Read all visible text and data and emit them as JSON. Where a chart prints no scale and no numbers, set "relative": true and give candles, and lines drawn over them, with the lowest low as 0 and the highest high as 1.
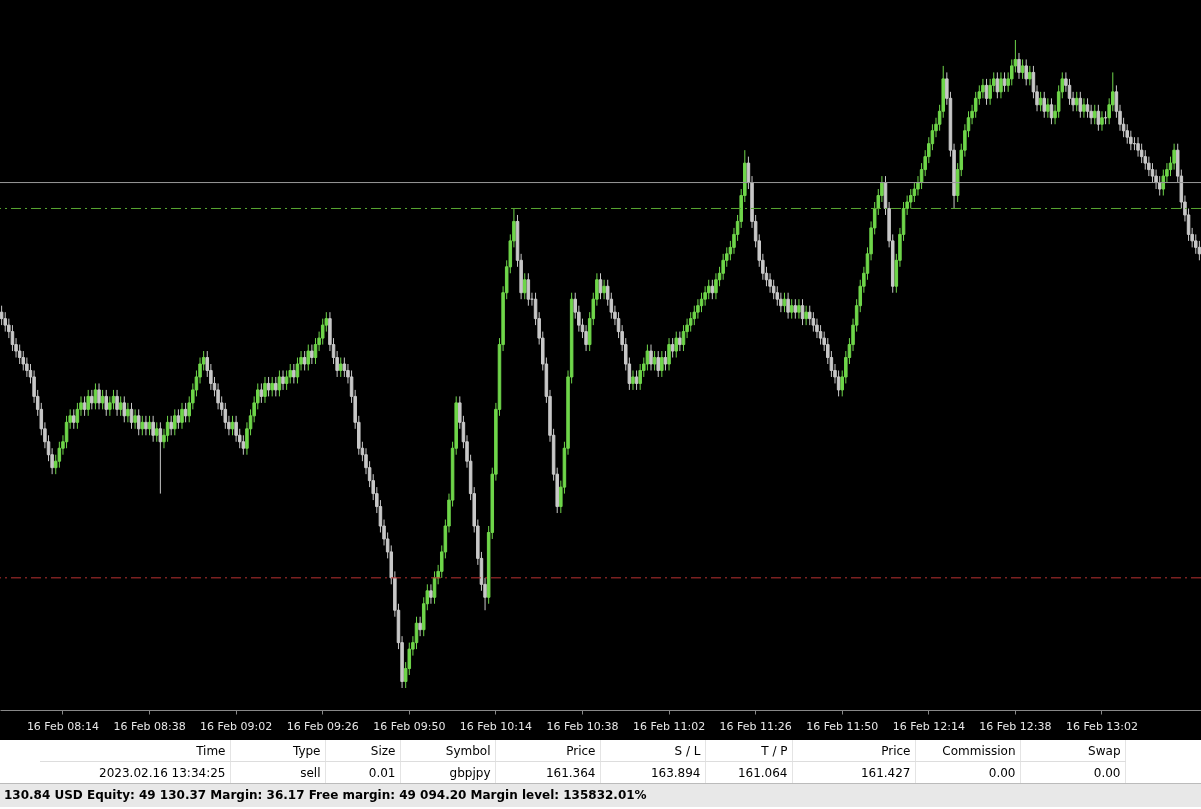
{
  "chart_data": {
    "type": "candlestick",
    "relative": true,
    "categories": [
      null,
      null,
      null,
      null,
      null,
      null,
      null,
      null,
      null,
      null,
      null,
      null,
      null,
      null,
      null,
      null,
      null,
      "16 Feb 08:14",
      null,
      null,
      null,
      null,
      null,
      null,
      null,
      null,
      null,
      null,
      null,
      null,
      null,
      null,
      null,
      null,
      null,
      null,
      null,
      null,
      null,
      null,
      null,
      "16 Feb 08:38",
      null,
      null,
      null,
      null,
      null,
      null,
      null,
      null,
      null,
      null,
      null,
      null,
      null,
      null,
      null,
      null,
      null,
      null,
      null,
      null,
      null,
      null,
      null,
      "16 Feb 09:02",
      null,
      null,
      null,
      null,
      null,
      null,
      null,
      null,
      null,
      null,
      null,
      null,
      null,
      null,
      null,
      null,
      null,
      null,
      null,
      null,
      null,
      null,
      null,
      "16 Feb 09:26",
      null,
      null,
      null,
      null,
      null,
      null,
      null,
      null,
      null,
      null,
      null,
      null,
      null,
      null,
      null,
      null,
      null,
      null,
      null,
      null,
      null,
      null,
      null,
      "16 Feb 09:50",
      null,
      null,
      null,
      null,
      null,
      null,
      null,
      null,
      null,
      null,
      null,
      null,
      null,
      null,
      null,
      null,
      null,
      null,
      null,
      null,
      null,
      null,
      null,
      "16 Feb 10:14",
      null,
      null,
      null,
      null,
      null,
      null,
      null,
      null,
      null,
      null,
      null,
      null,
      null,
      null,
      null,
      null,
      null,
      null,
      null,
      null,
      null,
      null,
      null,
      "16 Feb 10:38",
      null,
      null,
      null,
      null,
      null,
      null,
      null,
      null,
      null,
      null,
      null,
      null,
      null,
      null,
      null,
      null,
      null,
      null,
      null,
      null,
      null,
      null,
      null,
      "16 Feb 11:02",
      null,
      null,
      null,
      null,
      null,
      null,
      null,
      null,
      null,
      null,
      null,
      null,
      null,
      null,
      null,
      null,
      null,
      null,
      null,
      null,
      null,
      null,
      null,
      "16 Feb 11:26",
      null,
      null,
      null,
      null,
      null,
      null,
      null,
      null,
      null,
      null,
      null,
      null,
      null,
      null,
      null,
      null,
      null,
      null,
      null,
      null,
      null,
      null,
      null,
      "16 Feb 11:50",
      null,
      null,
      null,
      null,
      null,
      null,
      null,
      null,
      null,
      null,
      null,
      null,
      null,
      null,
      null,
      null,
      null,
      null,
      null,
      null,
      null,
      null,
      null,
      "16 Feb 12:14",
      null,
      null,
      null,
      null,
      null,
      null,
      null,
      null,
      null,
      null,
      null,
      null,
      null,
      null,
      null,
      null,
      null,
      null,
      null,
      null,
      null,
      null,
      null,
      "16 Feb 12:38",
      null,
      null,
      null,
      null,
      null,
      null,
      null,
      null,
      null,
      null,
      null,
      null,
      null,
      null,
      null,
      null,
      null,
      null,
      null,
      null,
      null,
      null,
      null,
      "16 Feb 13:02",
      null,
      null,
      null,
      null,
      null,
      null,
      null,
      null,
      null,
      null,
      null,
      null,
      null,
      null,
      null,
      null,
      null,
      null,
      null,
      null,
      null,
      null,
      null,
      null,
      null,
      null,
      null
    ],
    "ohlc": [
      [
        0.58,
        0.59,
        0.56,
        0.57
      ],
      [
        0.57,
        0.58,
        0.55,
        0.56
      ],
      [
        0.56,
        0.57,
        0.54,
        0.55
      ],
      [
        0.55,
        0.56,
        0.52,
        0.53
      ],
      [
        0.53,
        0.54,
        0.51,
        0.52
      ],
      [
        0.52,
        0.53,
        0.5,
        0.51
      ],
      [
        0.51,
        0.52,
        0.49,
        0.5
      ],
      [
        0.5,
        0.51,
        0.48,
        0.49
      ],
      [
        0.49,
        0.5,
        0.47,
        0.48
      ],
      [
        0.48,
        0.49,
        0.44,
        0.45
      ],
      [
        0.45,
        0.46,
        0.42,
        0.43
      ],
      [
        0.43,
        0.44,
        0.39,
        0.4
      ],
      [
        0.4,
        0.41,
        0.37,
        0.38
      ],
      [
        0.38,
        0.39,
        0.35,
        0.36
      ],
      [
        0.36,
        0.37,
        0.33,
        0.34
      ],
      [
        0.34,
        0.36,
        0.33,
        0.35
      ],
      [
        0.35,
        0.38,
        0.34,
        0.37
      ],
      [
        0.37,
        0.39,
        0.36,
        0.38
      ],
      [
        0.38,
        0.42,
        0.37,
        0.41
      ],
      [
        0.41,
        0.43,
        0.4,
        0.42
      ],
      [
        0.42,
        0.43,
        0.4,
        0.41
      ],
      [
        0.41,
        0.44,
        0.4,
        0.43
      ],
      [
        0.43,
        0.45,
        0.42,
        0.44
      ],
      [
        0.44,
        0.45,
        0.42,
        0.43
      ],
      [
        0.43,
        0.46,
        0.42,
        0.45
      ],
      [
        0.45,
        0.46,
        0.43,
        0.44
      ],
      [
        0.44,
        0.47,
        0.43,
        0.46
      ],
      [
        0.46,
        0.47,
        0.43,
        0.44
      ],
      [
        0.44,
        0.46,
        0.43,
        0.45
      ],
      [
        0.45,
        0.46,
        0.42,
        0.43
      ],
      [
        0.43,
        0.45,
        0.42,
        0.44
      ],
      [
        0.44,
        0.46,
        0.43,
        0.45
      ],
      [
        0.45,
        0.46,
        0.42,
        0.43
      ],
      [
        0.43,
        0.45,
        0.42,
        0.44
      ],
      [
        0.44,
        0.45,
        0.41,
        0.42
      ],
      [
        0.42,
        0.44,
        0.41,
        0.43
      ],
      [
        0.43,
        0.44,
        0.4,
        0.41
      ],
      [
        0.41,
        0.43,
        0.4,
        0.42
      ],
      [
        0.42,
        0.43,
        0.39,
        0.4
      ],
      [
        0.4,
        0.42,
        0.39,
        0.41
      ],
      [
        0.41,
        0.42,
        0.39,
        0.4
      ],
      [
        0.4,
        0.42,
        0.39,
        0.41
      ],
      [
        0.41,
        0.42,
        0.38,
        0.39
      ],
      [
        0.39,
        0.41,
        0.38,
        0.4
      ],
      [
        0.4,
        0.41,
        0.3,
        0.38
      ],
      [
        0.38,
        0.4,
        0.37,
        0.39
      ],
      [
        0.39,
        0.42,
        0.38,
        0.41
      ],
      [
        0.41,
        0.42,
        0.39,
        0.4
      ],
      [
        0.4,
        0.43,
        0.39,
        0.42
      ],
      [
        0.42,
        0.43,
        0.4,
        0.41
      ],
      [
        0.41,
        0.44,
        0.4,
        0.43
      ],
      [
        0.43,
        0.44,
        0.41,
        0.42
      ],
      [
        0.42,
        0.45,
        0.41,
        0.44
      ],
      [
        0.44,
        0.47,
        0.43,
        0.46
      ],
      [
        0.46,
        0.49,
        0.45,
        0.48
      ],
      [
        0.48,
        0.51,
        0.47,
        0.5
      ],
      [
        0.5,
        0.52,
        0.49,
        0.51
      ],
      [
        0.51,
        0.52,
        0.48,
        0.49
      ],
      [
        0.49,
        0.5,
        0.46,
        0.47
      ],
      [
        0.47,
        0.48,
        0.45,
        0.46
      ],
      [
        0.46,
        0.47,
        0.43,
        0.44
      ],
      [
        0.44,
        0.45,
        0.42,
        0.43
      ],
      [
        0.43,
        0.44,
        0.4,
        0.41
      ],
      [
        0.41,
        0.42,
        0.39,
        0.4
      ],
      [
        0.4,
        0.42,
        0.39,
        0.41
      ],
      [
        0.41,
        0.42,
        0.38,
        0.39
      ],
      [
        0.39,
        0.4,
        0.37,
        0.38
      ],
      [
        0.38,
        0.39,
        0.36,
        0.37
      ],
      [
        0.37,
        0.41,
        0.36,
        0.4
      ],
      [
        0.4,
        0.43,
        0.39,
        0.42
      ],
      [
        0.42,
        0.45,
        0.41,
        0.44
      ],
      [
        0.44,
        0.47,
        0.43,
        0.46
      ],
      [
        0.46,
        0.47,
        0.44,
        0.45
      ],
      [
        0.45,
        0.48,
        0.44,
        0.47
      ],
      [
        0.47,
        0.48,
        0.45,
        0.46
      ],
      [
        0.46,
        0.48,
        0.45,
        0.47
      ],
      [
        0.47,
        0.48,
        0.45,
        0.46
      ],
      [
        0.46,
        0.49,
        0.45,
        0.48
      ],
      [
        0.48,
        0.49,
        0.46,
        0.47
      ],
      [
        0.47,
        0.49,
        0.46,
        0.48
      ],
      [
        0.48,
        0.5,
        0.47,
        0.49
      ],
      [
        0.49,
        0.5,
        0.47,
        0.48
      ],
      [
        0.48,
        0.51,
        0.47,
        0.5
      ],
      [
        0.5,
        0.52,
        0.49,
        0.51
      ],
      [
        0.51,
        0.52,
        0.49,
        0.5
      ],
      [
        0.5,
        0.53,
        0.49,
        0.52
      ],
      [
        0.52,
        0.53,
        0.5,
        0.51
      ],
      [
        0.51,
        0.54,
        0.5,
        0.53
      ],
      [
        0.53,
        0.55,
        0.52,
        0.54
      ],
      [
        0.54,
        0.57,
        0.53,
        0.56
      ],
      [
        0.56,
        0.58,
        0.55,
        0.57
      ],
      [
        0.57,
        0.58,
        0.52,
        0.53
      ],
      [
        0.53,
        0.54,
        0.5,
        0.51
      ],
      [
        0.51,
        0.52,
        0.48,
        0.49
      ],
      [
        0.49,
        0.51,
        0.48,
        0.5
      ],
      [
        0.5,
        0.51,
        0.48,
        0.49
      ],
      [
        0.49,
        0.5,
        0.47,
        0.48
      ],
      [
        0.48,
        0.49,
        0.44,
        0.45
      ],
      [
        0.45,
        0.46,
        0.4,
        0.41
      ],
      [
        0.41,
        0.42,
        0.36,
        0.37
      ],
      [
        0.37,
        0.38,
        0.35,
        0.36
      ],
      [
        0.36,
        0.37,
        0.33,
        0.34
      ],
      [
        0.34,
        0.35,
        0.31,
        0.32
      ],
      [
        0.32,
        0.33,
        0.29,
        0.3
      ],
      [
        0.3,
        0.31,
        0.27,
        0.28
      ],
      [
        0.28,
        0.29,
        0.24,
        0.25
      ],
      [
        0.25,
        0.26,
        0.22,
        0.23
      ],
      [
        0.23,
        0.24,
        0.2,
        0.21
      ],
      [
        0.21,
        0.22,
        0.16,
        0.17
      ],
      [
        0.17,
        0.18,
        0.11,
        0.12
      ],
      [
        0.12,
        0.13,
        0.06,
        0.07
      ],
      [
        0.07,
        0.08,
        0.0,
        0.01
      ],
      [
        0.01,
        0.04,
        0.0,
        0.03
      ],
      [
        0.03,
        0.07,
        0.02,
        0.06
      ],
      [
        0.06,
        0.08,
        0.05,
        0.07
      ],
      [
        0.07,
        0.11,
        0.06,
        0.1
      ],
      [
        0.1,
        0.11,
        0.08,
        0.09
      ],
      [
        0.09,
        0.14,
        0.08,
        0.13
      ],
      [
        0.13,
        0.16,
        0.12,
        0.15
      ],
      [
        0.15,
        0.16,
        0.13,
        0.14
      ],
      [
        0.14,
        0.18,
        0.13,
        0.17
      ],
      [
        0.17,
        0.19,
        0.16,
        0.18
      ],
      [
        0.18,
        0.22,
        0.17,
        0.21
      ],
      [
        0.21,
        0.26,
        0.2,
        0.25
      ],
      [
        0.25,
        0.3,
        0.24,
        0.29
      ],
      [
        0.29,
        0.38,
        0.28,
        0.37
      ],
      [
        0.37,
        0.45,
        0.36,
        0.44
      ],
      [
        0.44,
        0.45,
        0.4,
        0.41
      ],
      [
        0.41,
        0.42,
        0.37,
        0.38
      ],
      [
        0.38,
        0.39,
        0.34,
        0.35
      ],
      [
        0.35,
        0.36,
        0.29,
        0.3
      ],
      [
        0.3,
        0.31,
        0.24,
        0.25
      ],
      [
        0.25,
        0.26,
        0.19,
        0.2
      ],
      [
        0.2,
        0.21,
        0.15,
        0.16
      ],
      [
        0.16,
        0.17,
        0.12,
        0.14
      ],
      [
        0.14,
        0.25,
        0.13,
        0.24
      ],
      [
        0.24,
        0.34,
        0.23,
        0.33
      ],
      [
        0.33,
        0.44,
        0.32,
        0.43
      ],
      [
        0.43,
        0.54,
        0.42,
        0.53
      ],
      [
        0.53,
        0.62,
        0.52,
        0.61
      ],
      [
        0.61,
        0.66,
        0.6,
        0.65
      ],
      [
        0.65,
        0.7,
        0.64,
        0.69
      ],
      [
        0.69,
        0.74,
        0.68,
        0.72
      ],
      [
        0.72,
        0.73,
        0.65,
        0.66
      ],
      [
        0.66,
        0.67,
        0.6,
        0.61
      ],
      [
        0.61,
        0.64,
        0.6,
        0.63
      ],
      [
        0.63,
        0.64,
        0.59,
        0.6
      ],
      [
        0.6,
        0.61,
        0.59,
        0.6
      ],
      [
        0.6,
        0.61,
        0.56,
        0.57
      ],
      [
        0.57,
        0.58,
        0.53,
        0.54
      ],
      [
        0.54,
        0.55,
        0.49,
        0.5
      ],
      [
        0.5,
        0.51,
        0.44,
        0.45
      ],
      [
        0.45,
        0.46,
        0.38,
        0.39
      ],
      [
        0.39,
        0.4,
        0.32,
        0.33
      ],
      [
        0.33,
        0.34,
        0.27,
        0.28
      ],
      [
        0.28,
        0.32,
        0.27,
        0.31
      ],
      [
        0.31,
        0.38,
        0.3,
        0.37
      ],
      [
        0.37,
        0.49,
        0.36,
        0.48
      ],
      [
        0.48,
        0.61,
        0.47,
        0.6
      ],
      [
        0.6,
        0.61,
        0.57,
        0.58
      ],
      [
        0.58,
        0.59,
        0.55,
        0.56
      ],
      [
        0.56,
        0.57,
        0.54,
        0.55
      ],
      [
        0.55,
        0.56,
        0.52,
        0.53
      ],
      [
        0.53,
        0.58,
        0.52,
        0.57
      ],
      [
        0.57,
        0.61,
        0.56,
        0.6
      ],
      [
        0.6,
        0.64,
        0.59,
        0.63
      ],
      [
        0.63,
        0.64,
        0.6,
        0.61
      ],
      [
        0.61,
        0.63,
        0.6,
        0.62
      ],
      [
        0.62,
        0.63,
        0.59,
        0.6
      ],
      [
        0.6,
        0.61,
        0.57,
        0.58
      ],
      [
        0.58,
        0.59,
        0.56,
        0.57
      ],
      [
        0.57,
        0.58,
        0.54,
        0.55
      ],
      [
        0.55,
        0.56,
        0.52,
        0.53
      ],
      [
        0.53,
        0.54,
        0.49,
        0.5
      ],
      [
        0.5,
        0.51,
        0.46,
        0.47
      ],
      [
        0.47,
        0.49,
        0.46,
        0.48
      ],
      [
        0.48,
        0.49,
        0.46,
        0.47
      ],
      [
        0.47,
        0.5,
        0.46,
        0.49
      ],
      [
        0.49,
        0.51,
        0.48,
        0.5
      ],
      [
        0.5,
        0.53,
        0.49,
        0.52
      ],
      [
        0.52,
        0.53,
        0.49,
        0.5
      ],
      [
        0.5,
        0.52,
        0.49,
        0.51
      ],
      [
        0.51,
        0.52,
        0.48,
        0.49
      ],
      [
        0.49,
        0.52,
        0.48,
        0.51
      ],
      [
        0.51,
        0.52,
        0.49,
        0.5
      ],
      [
        0.5,
        0.54,
        0.49,
        0.53
      ],
      [
        0.53,
        0.54,
        0.51,
        0.52
      ],
      [
        0.52,
        0.55,
        0.51,
        0.54
      ],
      [
        0.54,
        0.55,
        0.52,
        0.53
      ],
      [
        0.53,
        0.56,
        0.52,
        0.55
      ],
      [
        0.55,
        0.57,
        0.54,
        0.56
      ],
      [
        0.56,
        0.58,
        0.55,
        0.57
      ],
      [
        0.57,
        0.59,
        0.56,
        0.58
      ],
      [
        0.58,
        0.6,
        0.57,
        0.59
      ],
      [
        0.59,
        0.61,
        0.58,
        0.6
      ],
      [
        0.6,
        0.62,
        0.59,
        0.61
      ],
      [
        0.61,
        0.63,
        0.6,
        0.62
      ],
      [
        0.62,
        0.63,
        0.6,
        0.61
      ],
      [
        0.61,
        0.64,
        0.6,
        0.63
      ],
      [
        0.63,
        0.65,
        0.62,
        0.64
      ],
      [
        0.64,
        0.67,
        0.63,
        0.66
      ],
      [
        0.66,
        0.68,
        0.65,
        0.67
      ],
      [
        0.67,
        0.69,
        0.66,
        0.68
      ],
      [
        0.68,
        0.71,
        0.67,
        0.7
      ],
      [
        0.7,
        0.73,
        0.69,
        0.72
      ],
      [
        0.72,
        0.77,
        0.71,
        0.76
      ],
      [
        0.76,
        0.83,
        0.75,
        0.81
      ],
      [
        0.81,
        0.82,
        0.77,
        0.78
      ],
      [
        0.78,
        0.79,
        0.71,
        0.72
      ],
      [
        0.72,
        0.73,
        0.68,
        0.69
      ],
      [
        0.69,
        0.7,
        0.65,
        0.66
      ],
      [
        0.66,
        0.67,
        0.63,
        0.64
      ],
      [
        0.64,
        0.65,
        0.62,
        0.63
      ],
      [
        0.63,
        0.64,
        0.61,
        0.62
      ],
      [
        0.62,
        0.63,
        0.6,
        0.61
      ],
      [
        0.61,
        0.62,
        0.59,
        0.6
      ],
      [
        0.6,
        0.61,
        0.58,
        0.59
      ],
      [
        0.59,
        0.61,
        0.58,
        0.6
      ],
      [
        0.6,
        0.61,
        0.57,
        0.58
      ],
      [
        0.58,
        0.6,
        0.57,
        0.59
      ],
      [
        0.59,
        0.6,
        0.57,
        0.58
      ],
      [
        0.58,
        0.6,
        0.57,
        0.59
      ],
      [
        0.59,
        0.6,
        0.56,
        0.57
      ],
      [
        0.57,
        0.59,
        0.56,
        0.58
      ],
      [
        0.58,
        0.59,
        0.56,
        0.57
      ],
      [
        0.57,
        0.58,
        0.55,
        0.56
      ],
      [
        0.56,
        0.57,
        0.54,
        0.55
      ],
      [
        0.55,
        0.56,
        0.53,
        0.54
      ],
      [
        0.54,
        0.55,
        0.52,
        0.53
      ],
      [
        0.53,
        0.54,
        0.5,
        0.51
      ],
      [
        0.51,
        0.52,
        0.48,
        0.49
      ],
      [
        0.49,
        0.5,
        0.47,
        0.48
      ],
      [
        0.48,
        0.49,
        0.45,
        0.46
      ],
      [
        0.46,
        0.49,
        0.45,
        0.48
      ],
      [
        0.48,
        0.52,
        0.47,
        0.51
      ],
      [
        0.51,
        0.54,
        0.5,
        0.53
      ],
      [
        0.53,
        0.57,
        0.52,
        0.56
      ],
      [
        0.56,
        0.6,
        0.55,
        0.59
      ],
      [
        0.59,
        0.63,
        0.58,
        0.62
      ],
      [
        0.62,
        0.65,
        0.61,
        0.64
      ],
      [
        0.64,
        0.68,
        0.63,
        0.67
      ],
      [
        0.67,
        0.72,
        0.66,
        0.71
      ],
      [
        0.71,
        0.75,
        0.7,
        0.74
      ],
      [
        0.74,
        0.77,
        0.73,
        0.76
      ],
      [
        0.76,
        0.79,
        0.75,
        0.78
      ],
      [
        0.78,
        0.79,
        0.73,
        0.74
      ],
      [
        0.74,
        0.75,
        0.68,
        0.69
      ],
      [
        0.69,
        0.7,
        0.61,
        0.62
      ],
      [
        0.62,
        0.67,
        0.61,
        0.66
      ],
      [
        0.66,
        0.71,
        0.65,
        0.7
      ],
      [
        0.7,
        0.75,
        0.69,
        0.74
      ],
      [
        0.74,
        0.76,
        0.73,
        0.75
      ],
      [
        0.75,
        0.77,
        0.74,
        0.76
      ],
      [
        0.76,
        0.78,
        0.75,
        0.77
      ],
      [
        0.77,
        0.79,
        0.76,
        0.78
      ],
      [
        0.78,
        0.81,
        0.77,
        0.8
      ],
      [
        0.8,
        0.83,
        0.79,
        0.82
      ],
      [
        0.82,
        0.85,
        0.81,
        0.84
      ],
      [
        0.84,
        0.87,
        0.83,
        0.86
      ],
      [
        0.86,
        0.88,
        0.85,
        0.87
      ],
      [
        0.87,
        0.9,
        0.86,
        0.89
      ],
      [
        0.89,
        0.96,
        0.88,
        0.94
      ],
      [
        0.94,
        0.95,
        0.9,
        0.91
      ],
      [
        0.91,
        0.92,
        0.82,
        0.83
      ],
      [
        0.83,
        0.84,
        0.74,
        0.76
      ],
      [
        0.76,
        0.81,
        0.75,
        0.8
      ],
      [
        0.8,
        0.84,
        0.79,
        0.83
      ],
      [
        0.83,
        0.87,
        0.82,
        0.86
      ],
      [
        0.86,
        0.89,
        0.85,
        0.88
      ],
      [
        0.88,
        0.9,
        0.87,
        0.89
      ],
      [
        0.89,
        0.92,
        0.88,
        0.91
      ],
      [
        0.91,
        0.93,
        0.9,
        0.92
      ],
      [
        0.92,
        0.94,
        0.91,
        0.93
      ],
      [
        0.93,
        0.94,
        0.9,
        0.91
      ],
      [
        0.91,
        0.94,
        0.9,
        0.93
      ],
      [
        0.93,
        0.95,
        0.92,
        0.94
      ],
      [
        0.94,
        0.95,
        0.91,
        0.92
      ],
      [
        0.92,
        0.95,
        0.91,
        0.94
      ],
      [
        0.94,
        0.95,
        0.92,
        0.93
      ],
      [
        0.93,
        0.95,
        0.92,
        0.94
      ],
      [
        0.94,
        0.97,
        0.93,
        0.96
      ],
      [
        0.96,
        1.0,
        0.95,
        0.97
      ],
      [
        0.97,
        0.98,
        0.94,
        0.95
      ],
      [
        0.95,
        0.97,
        0.94,
        0.96
      ],
      [
        0.96,
        0.97,
        0.93,
        0.94
      ],
      [
        0.94,
        0.96,
        0.93,
        0.95
      ],
      [
        0.95,
        0.96,
        0.91,
        0.92
      ],
      [
        0.92,
        0.93,
        0.89,
        0.9
      ],
      [
        0.9,
        0.92,
        0.89,
        0.91
      ],
      [
        0.91,
        0.92,
        0.88,
        0.89
      ],
      [
        0.89,
        0.91,
        0.88,
        0.9
      ],
      [
        0.9,
        0.91,
        0.87,
        0.88
      ],
      [
        0.88,
        0.9,
        0.87,
        0.89
      ],
      [
        0.89,
        0.93,
        0.88,
        0.92
      ],
      [
        0.92,
        0.95,
        0.91,
        0.94
      ],
      [
        0.94,
        0.95,
        0.92,
        0.93
      ],
      [
        0.93,
        0.94,
        0.9,
        0.91
      ],
      [
        0.91,
        0.92,
        0.89,
        0.9
      ],
      [
        0.9,
        0.92,
        0.89,
        0.91
      ],
      [
        0.91,
        0.92,
        0.88,
        0.89
      ],
      [
        0.89,
        0.91,
        0.88,
        0.9
      ],
      [
        0.9,
        0.91,
        0.88,
        0.89
      ],
      [
        0.89,
        0.9,
        0.87,
        0.88
      ],
      [
        0.88,
        0.9,
        0.87,
        0.89
      ],
      [
        0.89,
        0.9,
        0.86,
        0.87
      ],
      [
        0.87,
        0.89,
        0.86,
        0.88
      ],
      [
        0.88,
        0.89,
        0.87,
        0.88
      ],
      [
        0.88,
        0.91,
        0.87,
        0.9
      ],
      [
        0.9,
        0.95,
        0.89,
        0.92
      ],
      [
        0.92,
        0.93,
        0.88,
        0.89
      ],
      [
        0.89,
        0.9,
        0.86,
        0.87
      ],
      [
        0.87,
        0.88,
        0.85,
        0.86
      ],
      [
        0.86,
        0.87,
        0.84,
        0.85
      ],
      [
        0.85,
        0.86,
        0.83,
        0.84
      ],
      [
        0.84,
        0.85,
        0.83,
        0.84
      ],
      [
        0.84,
        0.85,
        0.82,
        0.83
      ],
      [
        0.83,
        0.84,
        0.81,
        0.82
      ],
      [
        0.82,
        0.83,
        0.8,
        0.81
      ],
      [
        0.81,
        0.82,
        0.79,
        0.8
      ],
      [
        0.8,
        0.81,
        0.78,
        0.79
      ],
      [
        0.79,
        0.8,
        0.77,
        0.78
      ],
      [
        0.78,
        0.79,
        0.76,
        0.77
      ],
      [
        0.77,
        0.8,
        0.76,
        0.79
      ],
      [
        0.79,
        0.81,
        0.78,
        0.8
      ],
      [
        0.8,
        0.82,
        0.79,
        0.81
      ],
      [
        0.81,
        0.84,
        0.8,
        0.83
      ],
      [
        0.83,
        0.84,
        0.78,
        0.79
      ],
      [
        0.79,
        0.8,
        0.74,
        0.75
      ],
      [
        0.75,
        0.76,
        0.72,
        0.73
      ],
      [
        0.73,
        0.74,
        0.69,
        0.7
      ],
      [
        0.7,
        0.71,
        0.68,
        0.69
      ],
      [
        0.69,
        0.7,
        0.67,
        0.68
      ],
      [
        0.68,
        0.69,
        0.66,
        0.67
      ]
    ],
    "ref_lines": [
      {
        "axis": "y",
        "value": 0.78,
        "color": "#9a9a9a",
        "line_style": "solid"
      },
      {
        "axis": "y",
        "value": 0.74,
        "color": "#5aa832",
        "line_style": "dashed"
      },
      {
        "axis": "y",
        "value": 0.17,
        "color": "#b83232",
        "line_style": "dashed"
      }
    ],
    "annotations": [
      "Time",
      "Type",
      "Size",
      "Symbol",
      "Price",
      "S / L",
      "T / P",
      "Price",
      "Commission",
      "Swap",
      "2023.02.16 13:34:25",
      "sell",
      "0.01",
      "gbpjpy",
      "161.364",
      "163.894",
      "161.064",
      "161.427",
      "0.00",
      "0.00",
      "130.84 USD  Equity: 49 130.37  Margin: 36.17  Free margin: 49 094.20  Margin level: 135832.01%"
    ]
  }
}
